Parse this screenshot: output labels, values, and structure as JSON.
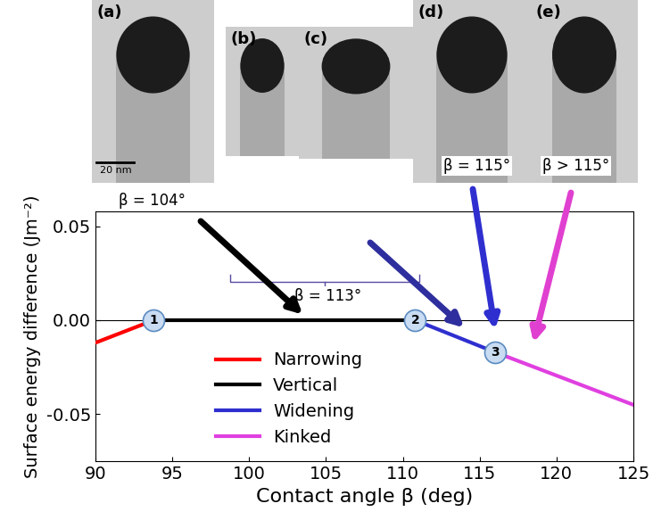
{
  "chart_data": {
    "type": "line",
    "xlabel": "Contact angle β (deg)",
    "ylabel": "Surface energy difference (Jm⁻²)",
    "xlim": [
      90,
      125
    ],
    "ylim": [
      -0.075,
      0.058
    ],
    "xticks": [
      90,
      95,
      100,
      105,
      110,
      115,
      120,
      125
    ],
    "yticks": [
      {
        "value": -0.05,
        "label": "-0.05"
      },
      {
        "value": 0,
        "label": "0.00"
      },
      0.05
    ],
    "legend": "lower center",
    "series": [
      {
        "name": "Narrowing",
        "color": "#ff0000",
        "x": [
          90,
          93.8
        ],
        "values": [
          -0.012,
          0
        ]
      },
      {
        "name": "Vertical",
        "color": "#000000",
        "x": [
          93.8,
          110.8
        ],
        "values": [
          0,
          0
        ]
      },
      {
        "name": "Widening",
        "color": "#2f2fd0",
        "x": [
          110.8,
          116
        ],
        "values": [
          0,
          -0.017
        ]
      },
      {
        "name": "Kinked",
        "color": "#e040e0",
        "x": [
          116,
          125
        ],
        "values": [
          -0.017,
          -0.045
        ]
      }
    ],
    "points": [
      {
        "label": "1",
        "x": 93.8,
        "y": 0
      },
      {
        "label": "2",
        "x": 110.8,
        "y": 0
      },
      {
        "label": "3",
        "x": 116,
        "y": -0.017
      }
    ],
    "annotations": [
      {
        "text": "β = 104°",
        "x": 103.5,
        "y": 0.003,
        "color": "#000000"
      },
      {
        "text": "β = 113°",
        "x": 114,
        "y": -0.004,
        "color": "#2e2e9e"
      },
      {
        "text": "β = 115°",
        "x": 116,
        "y": -0.005,
        "color": "#2f2fd0"
      },
      {
        "text": "β > 115°",
        "x": 118.5,
        "y": -0.012,
        "color": "#e040d0"
      }
    ]
  },
  "images": {
    "panels": [
      "(a)",
      "(b)",
      "(c)",
      "(d)",
      "(e)"
    ],
    "scale_bar": "20 nm"
  }
}
